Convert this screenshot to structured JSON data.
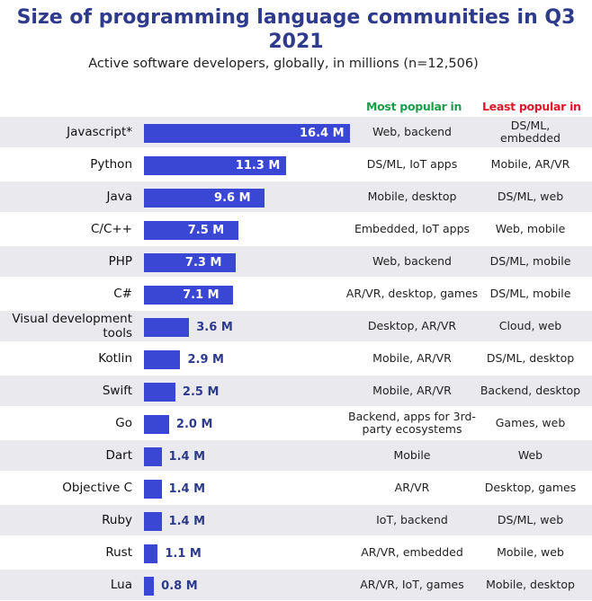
{
  "chart_data": {
    "type": "bar",
    "orientation": "horizontal",
    "title": "Size of programming language communities in Q3 2021",
    "subtitle": "Active software developers, globally, in millions (n=12,506)",
    "columns": {
      "most_popular": "Most popular in",
      "least_popular": "Least popular in"
    },
    "colors": {
      "bar": "#3a47d5",
      "title": "#2e3a8c",
      "most_header": "#1a9e4a",
      "least_header": "#e0162b",
      "row_band": "#e9e9ee"
    },
    "xlim": [
      0,
      16.4
    ],
    "rows": [
      {
        "category": "Javascript*",
        "value": 16.4,
        "label": "16.4 M",
        "most": "Web, backend",
        "least": "DS/ML, embedded"
      },
      {
        "category": "Python",
        "value": 11.3,
        "label": "11.3 M",
        "most": "DS/ML, IoT apps",
        "least": "Mobile, AR/VR"
      },
      {
        "category": "Java",
        "value": 9.6,
        "label": "9.6 M",
        "most": "Mobile, desktop",
        "least": "DS/ML, web"
      },
      {
        "category": "C/C++",
        "value": 7.5,
        "label": "7.5 M",
        "most": "Embedded, IoT apps",
        "least": "Web, mobile"
      },
      {
        "category": "PHP",
        "value": 7.3,
        "label": "7.3 M",
        "most": "Web, backend",
        "least": "DS/ML, mobile"
      },
      {
        "category": "C#",
        "value": 7.1,
        "label": "7.1 M",
        "most": "AR/VR, desktop, games",
        "least": "DS/ML, mobile"
      },
      {
        "category": "Visual development tools",
        "value": 3.6,
        "label": "3.6 M",
        "most": "Desktop, AR/VR",
        "least": "Cloud, web"
      },
      {
        "category": "Kotlin",
        "value": 2.9,
        "label": "2.9 M",
        "most": "Mobile, AR/VR",
        "least": "DS/ML, desktop"
      },
      {
        "category": "Swift",
        "value": 2.5,
        "label": "2.5 M",
        "most": "Mobile, AR/VR",
        "least": "Backend, desktop"
      },
      {
        "category": "Go",
        "value": 2.0,
        "label": "2.0 M",
        "most": "Backend, apps for 3rd-party ecosystems",
        "least": "Games, web"
      },
      {
        "category": "Dart",
        "value": 1.4,
        "label": "1.4 M",
        "most": "Mobile",
        "least": "Web"
      },
      {
        "category": "Objective C",
        "value": 1.4,
        "label": "1.4 M",
        "most": "AR/VR",
        "least": "Desktop, games"
      },
      {
        "category": "Ruby",
        "value": 1.4,
        "label": "1.4 M",
        "most": "IoT, backend",
        "least": "DS/ML, web"
      },
      {
        "category": "Rust",
        "value": 1.1,
        "label": "1.1 M",
        "most": "AR/VR, embedded",
        "least": "Mobile, web"
      },
      {
        "category": "Lua",
        "value": 0.8,
        "label": "0.8 M",
        "most": "AR/VR, IoT, games",
        "least": "Mobile, desktop"
      }
    ]
  }
}
